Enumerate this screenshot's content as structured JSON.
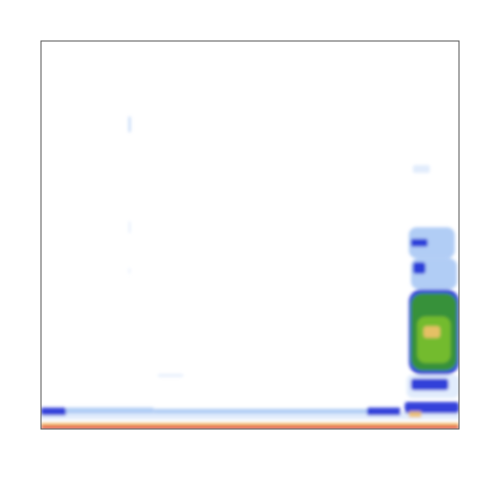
{
  "chart_data": {
    "type": "heatmap",
    "title": "",
    "xlabel": "",
    "ylabel": "",
    "axes_visible": false,
    "tick_labels_visible": false,
    "grid": false,
    "legend": "none",
    "colormap": [
      "#ffffff",
      "#dce9fb",
      "#a9c8f4",
      "#1f2fd6",
      "#3a9a28",
      "#7ac02e",
      "#f2c16b",
      "#e1412a"
    ],
    "x_range": [
      0,
      1
    ],
    "y_range": [
      0,
      1
    ],
    "cells": [
      {
        "x": 0.0,
        "y": 0.0,
        "w": 1.0,
        "h": 0.01,
        "level": 7
      },
      {
        "x": 0.0,
        "y": 0.01,
        "w": 1.0,
        "h": 0.006,
        "level": 6
      },
      {
        "x": 0.0,
        "y": 0.025,
        "w": 1.0,
        "h": 0.02,
        "level": 1
      },
      {
        "x": 0.0,
        "y": 0.035,
        "w": 0.06,
        "h": 0.02,
        "level": 3
      },
      {
        "x": 0.06,
        "y": 0.04,
        "w": 0.21,
        "h": 0.015,
        "level": 2
      },
      {
        "x": 0.27,
        "y": 0.04,
        "w": 0.52,
        "h": 0.012,
        "level": 2
      },
      {
        "x": 0.78,
        "y": 0.035,
        "w": 0.08,
        "h": 0.02,
        "level": 3
      },
      {
        "x": 0.87,
        "y": 0.04,
        "w": 0.13,
        "h": 0.03,
        "level": 3
      },
      {
        "x": 0.88,
        "y": 0.03,
        "w": 0.03,
        "h": 0.015,
        "level": 6
      },
      {
        "x": 0.875,
        "y": 0.08,
        "w": 0.125,
        "h": 0.06,
        "level": 1
      },
      {
        "x": 0.885,
        "y": 0.1,
        "w": 0.09,
        "h": 0.03,
        "level": 3
      },
      {
        "x": 0.88,
        "y": 0.14,
        "w": 0.12,
        "h": 0.22,
        "level": 3
      },
      {
        "x": 0.885,
        "y": 0.15,
        "w": 0.11,
        "h": 0.2,
        "level": 4
      },
      {
        "x": 0.9,
        "y": 0.17,
        "w": 0.08,
        "h": 0.12,
        "level": 5
      },
      {
        "x": 0.915,
        "y": 0.235,
        "w": 0.04,
        "h": 0.03,
        "level": 6
      },
      {
        "x": 0.885,
        "y": 0.36,
        "w": 0.11,
        "h": 0.08,
        "level": 2
      },
      {
        "x": 0.89,
        "y": 0.4,
        "w": 0.03,
        "h": 0.03,
        "level": 3
      },
      {
        "x": 0.88,
        "y": 0.44,
        "w": 0.11,
        "h": 0.08,
        "level": 2
      },
      {
        "x": 0.885,
        "y": 0.47,
        "w": 0.04,
        "h": 0.02,
        "level": 3
      },
      {
        "x": 0.89,
        "y": 0.66,
        "w": 0.04,
        "h": 0.02,
        "level": 1
      },
      {
        "x": 0.21,
        "y": 0.765,
        "w": 0.004,
        "h": 0.04,
        "level": 2
      },
      {
        "x": 0.21,
        "y": 0.505,
        "w": 0.004,
        "h": 0.03,
        "level": 1
      },
      {
        "x": 0.21,
        "y": 0.4,
        "w": 0.003,
        "h": 0.015,
        "level": 1
      },
      {
        "x": 0.28,
        "y": 0.135,
        "w": 0.06,
        "h": 0.006,
        "level": 1
      }
    ]
  }
}
